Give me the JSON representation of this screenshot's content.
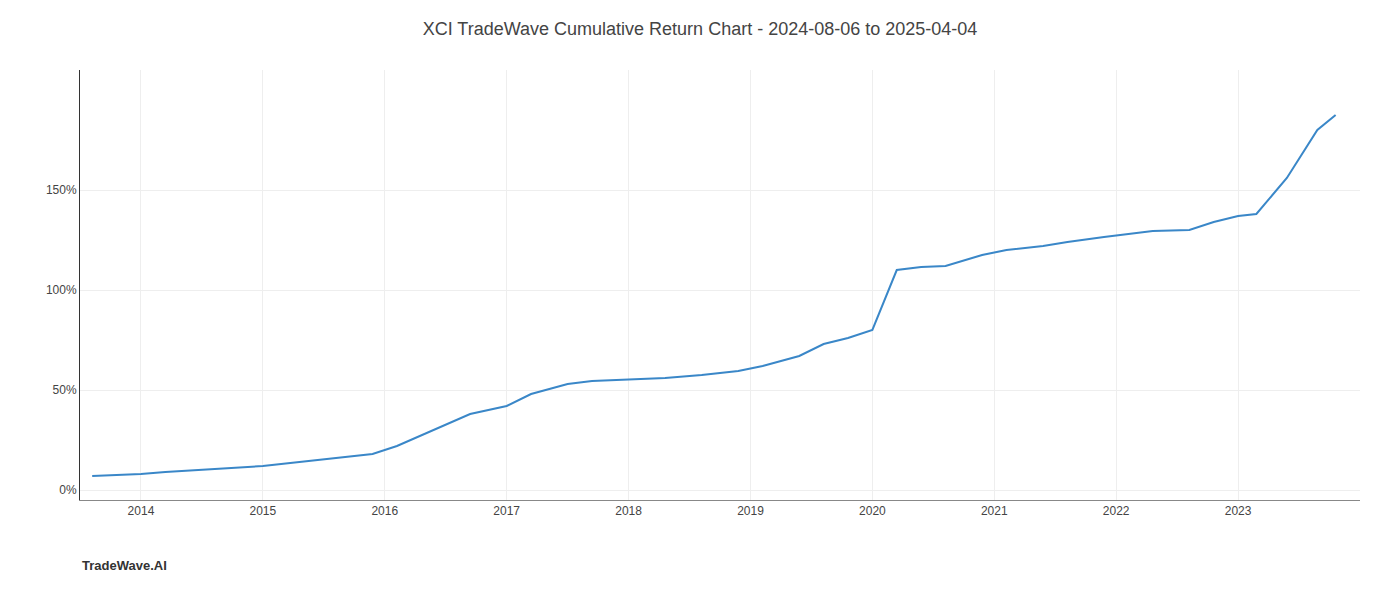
{
  "chart_data": {
    "type": "line",
    "title": "XCI TradeWave Cumulative Return Chart - 2024-08-06 to 2025-04-04",
    "annotations": [
      {
        "text": "TradeWave.AI"
      }
    ],
    "color": "#3a87c8",
    "x": [
      2013.6,
      2014.0,
      2014.2,
      2014.5,
      2014.8,
      2015.0,
      2015.3,
      2015.6,
      2015.9,
      2016.1,
      2016.4,
      2016.7,
      2017.0,
      2017.2,
      2017.5,
      2017.7,
      2017.9,
      2018.1,
      2018.3,
      2018.6,
      2018.9,
      2019.1,
      2019.4,
      2019.6,
      2019.8,
      2020.0,
      2020.2,
      2020.4,
      2020.6,
      2020.9,
      2021.1,
      2021.4,
      2021.6,
      2021.9,
      2022.1,
      2022.3,
      2022.6,
      2022.8,
      2023.0,
      2023.15,
      2023.4,
      2023.65,
      2023.8
    ],
    "values": [
      0.07,
      0.08,
      0.09,
      0.1,
      0.11,
      0.12,
      0.14,
      0.16,
      0.18,
      0.22,
      0.3,
      0.38,
      0.42,
      0.48,
      0.53,
      0.545,
      0.55,
      0.555,
      0.56,
      0.575,
      0.595,
      0.62,
      0.67,
      0.73,
      0.76,
      0.8,
      1.1,
      1.115,
      1.12,
      1.175,
      1.2,
      1.22,
      1.24,
      1.265,
      1.28,
      1.295,
      1.3,
      1.34,
      1.37,
      1.38,
      1.56,
      1.8,
      1.875
    ],
    "xlim": [
      2013.5,
      2024.0
    ],
    "xticks": [
      2014,
      2015,
      2016,
      2017,
      2018,
      2019,
      2020,
      2021,
      2022,
      2023
    ],
    "ylim": [
      -0.05,
      2.1
    ],
    "yticks": [
      {
        "value": 0.0,
        "label": "0%"
      },
      {
        "value": 0.5,
        "label": "50%"
      },
      {
        "value": 1.0,
        "label": "100%"
      },
      {
        "value": 1.5,
        "label": "150%"
      }
    ],
    "grid": true
  }
}
